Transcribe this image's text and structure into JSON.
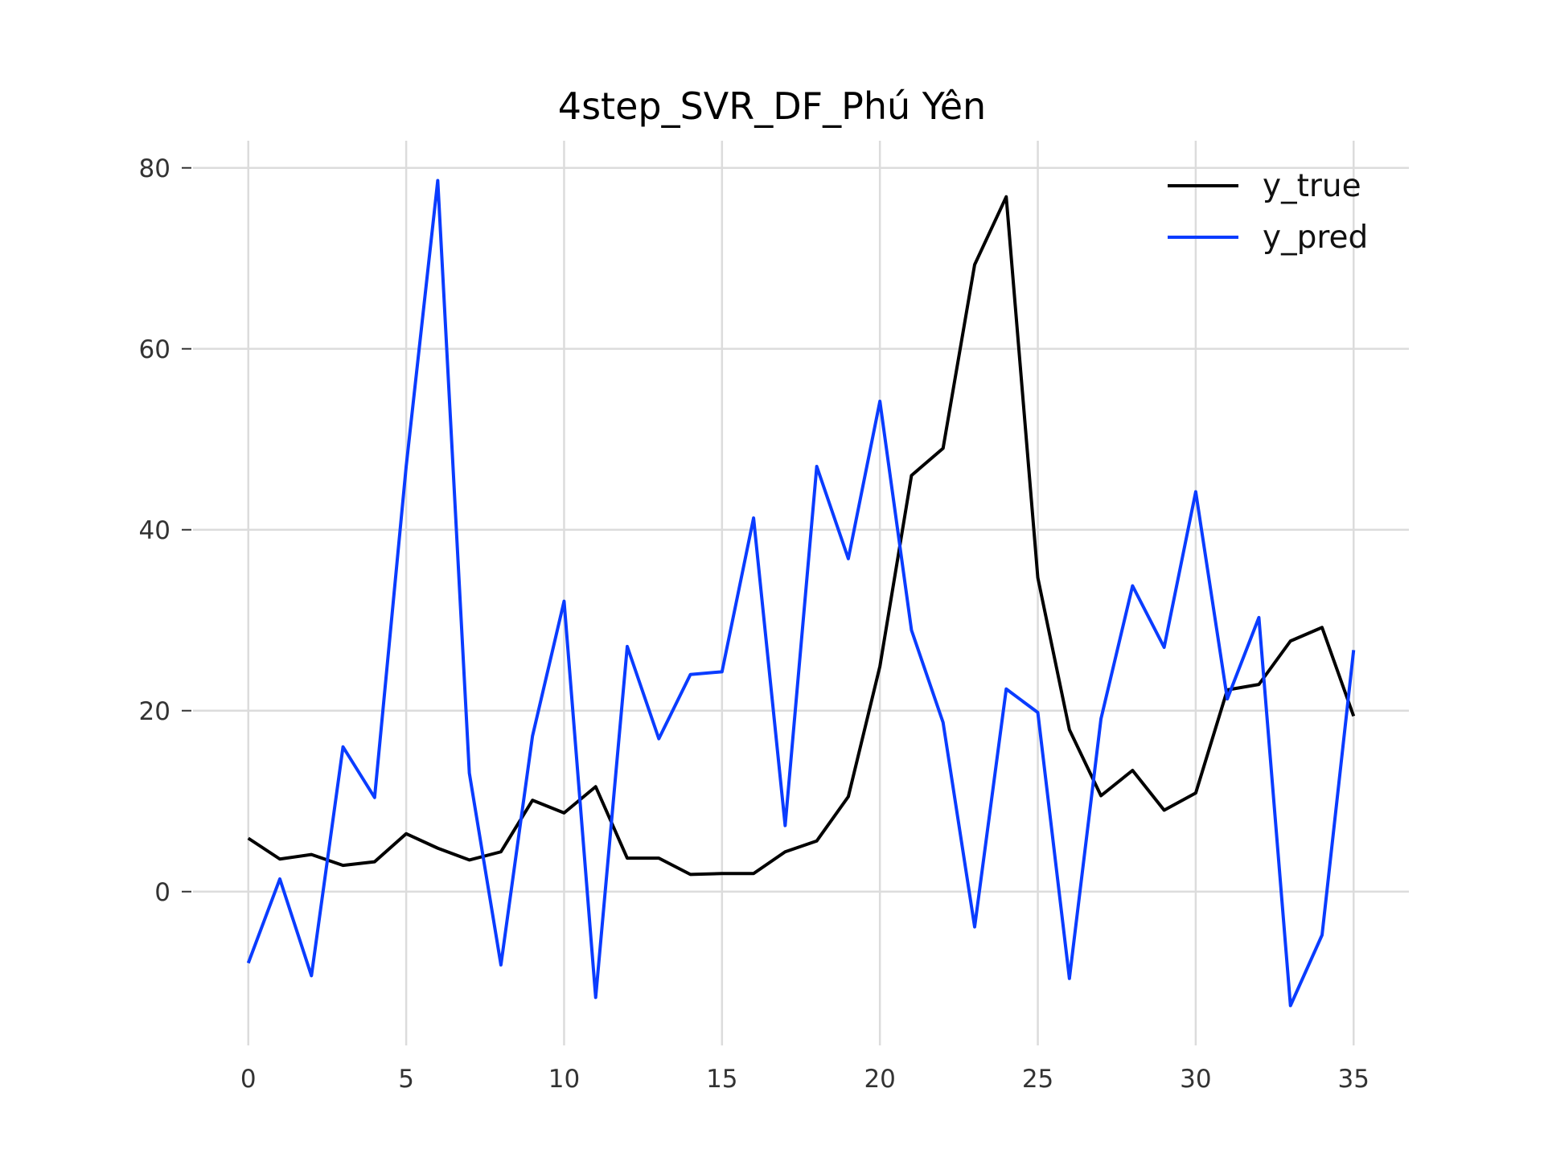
{
  "chart_data": {
    "type": "line",
    "title": "4step_SVR_DF_Phú Yên",
    "xlabel": "",
    "ylabel": "",
    "xlim": [
      -1.75,
      36.75
    ],
    "ylim": [
      -17,
      83
    ],
    "x_ticks": [
      0,
      5,
      10,
      15,
      20,
      25,
      30,
      35
    ],
    "y_ticks": [
      0,
      20,
      40,
      60,
      80
    ],
    "grid": true,
    "legend_position": "top-right",
    "x": [
      0,
      1,
      2,
      3,
      4,
      5,
      6,
      7,
      8,
      9,
      10,
      11,
      12,
      13,
      14,
      15,
      16,
      17,
      18,
      19,
      20,
      21,
      22,
      23,
      24,
      25,
      26,
      27,
      28,
      29,
      30,
      31,
      32,
      33,
      34,
      35
    ],
    "series": [
      {
        "name": "y_true",
        "color": "#000000",
        "values": [
          5.9,
          3.6,
          4.1,
          2.9,
          3.3,
          6.4,
          4.8,
          3.5,
          4.4,
          10.1,
          8.7,
          11.6,
          3.7,
          3.7,
          1.9,
          2.0,
          2.0,
          4.4,
          5.6,
          10.5,
          24.9,
          46.0,
          49.0,
          69.3,
          76.8,
          34.7,
          17.9,
          10.6,
          13.4,
          9.0,
          10.9,
          22.3,
          22.9,
          27.7,
          29.2,
          19.4
        ]
      },
      {
        "name": "y_pred",
        "color": "#0a3cff",
        "values": [
          -7.9,
          1.4,
          -9.3,
          16.0,
          10.4,
          47.0,
          78.6,
          13.1,
          -8.1,
          17.2,
          32.1,
          -11.7,
          27.1,
          16.9,
          24.0,
          24.3,
          41.3,
          7.3,
          47.0,
          36.8,
          54.2,
          28.9,
          18.7,
          -3.9,
          22.4,
          19.8,
          -9.6,
          19.1,
          33.8,
          27.0,
          44.2,
          21.3,
          30.3,
          -12.6,
          -4.8,
          26.7
        ]
      }
    ]
  }
}
